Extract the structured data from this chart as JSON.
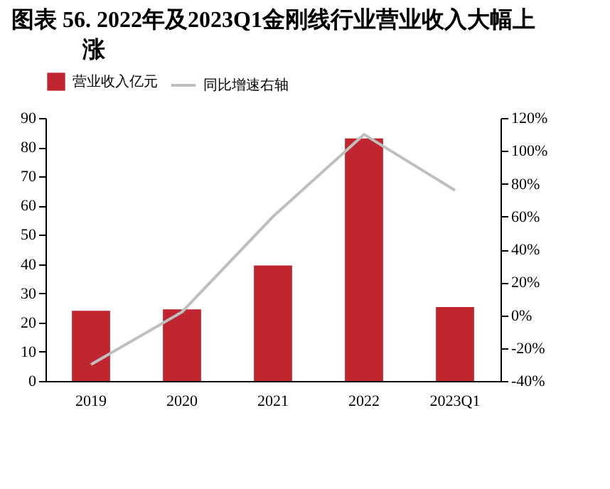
{
  "chart_data": {
    "type": "bar",
    "title": "图表 56. 2022年及2023Q1金刚线行业营业收入大幅上涨",
    "categories": [
      "2019",
      "2020",
      "2021",
      "2022",
      "2023Q1"
    ],
    "series": [
      {
        "name": "营业收入亿元",
        "color": "#c0262f",
        "values": [
          24,
          24.5,
          39.5,
          83,
          25.3
        ]
      },
      {
        "name": "同比增速右轴",
        "type": "line",
        "axis": "y2",
        "color": "#bfbfbf",
        "values": [
          -30,
          2,
          60,
          110,
          76
        ]
      }
    ],
    "ylim": [
      0,
      90
    ],
    "yticks": [
      0,
      10,
      20,
      30,
      40,
      50,
      60,
      70,
      80,
      90
    ],
    "y2lim": [
      -40,
      120
    ],
    "y2ticks": [
      {
        "value": -40,
        "label": "-40%"
      },
      {
        "value": -20,
        "label": "-20%"
      },
      {
        "value": 0,
        "label": "0%"
      },
      {
        "value": 20,
        "label": "20%"
      },
      {
        "value": 40,
        "label": "40%"
      },
      {
        "value": 60,
        "label": "60%"
      },
      {
        "value": 80,
        "label": "80%"
      },
      {
        "value": 100,
        "label": "100%"
      },
      {
        "value": 120,
        "label": "120%"
      }
    ],
    "legend": "top"
  }
}
